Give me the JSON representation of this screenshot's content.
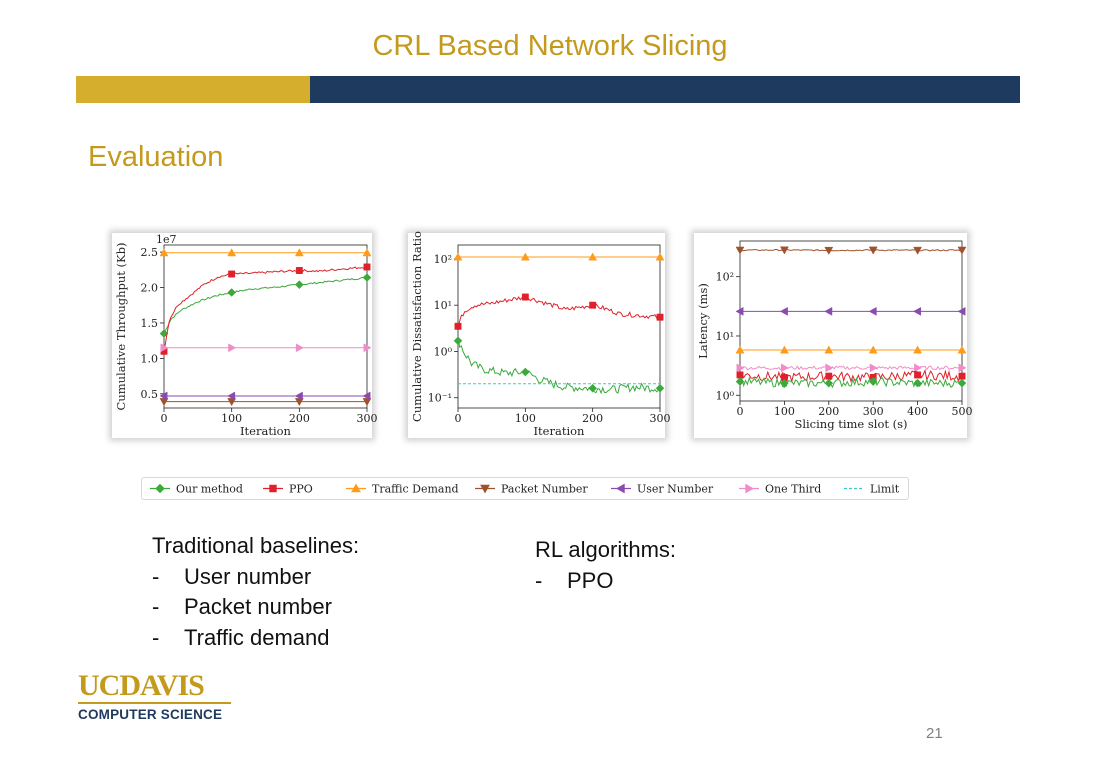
{
  "slide": {
    "title": "CRL Based Network Slicing",
    "section": "Evaluation",
    "page_number": "21",
    "colors": {
      "gold": "#d4ae2c",
      "navy": "#1e3a5f",
      "title_gold": "#c49a1c"
    }
  },
  "logo": {
    "line1": "UCDAVIS",
    "line2": "COMPUTER SCIENCE"
  },
  "traditional": {
    "heading": "Traditional baselines:",
    "items": [
      "User number",
      "Packet number",
      "Traffic demand"
    ]
  },
  "rl": {
    "heading": "RL algorithms:",
    "items": [
      "PPO"
    ]
  },
  "series_styles": [
    {
      "name": "Our method",
      "color": "#3aaa3a",
      "marker": "diamond"
    },
    {
      "name": "PPO",
      "color": "#e0202a",
      "marker": "square"
    },
    {
      "name": "Traffic Demand",
      "color": "#ff9a1a",
      "marker": "triangle-up"
    },
    {
      "name": "Packet Number",
      "color": "#a0522d",
      "marker": "triangle-down"
    },
    {
      "name": "User Number",
      "color": "#8a4bb0",
      "marker": "triangle-left"
    },
    {
      "name": "One Third",
      "color": "#f08cc8",
      "marker": "triangle-right"
    },
    {
      "name": "Limit",
      "color": "#3cc9c9",
      "marker": "dashed"
    }
  ],
  "chart_data": [
    {
      "type": "line",
      "xlabel": "Iteration",
      "ylabel": "Cumulative Throughput (Kb)",
      "offset_text": "1e7",
      "xlim": [
        0,
        300
      ],
      "ylim": [
        0.3,
        2.6
      ],
      "xticks": [
        0,
        100,
        200,
        300
      ],
      "yticks": [
        0.5,
        1.0,
        1.5,
        2.0,
        2.5
      ],
      "ytick_labels": [
        "0.5",
        "1.0",
        "1.5",
        "2.0",
        "2.5"
      ],
      "series": [
        {
          "name": "Our method",
          "x": [
            0,
            10,
            25,
            50,
            75,
            100,
            130,
            160,
            200,
            230,
            260,
            300
          ],
          "y": [
            1.35,
            1.55,
            1.68,
            1.8,
            1.88,
            1.93,
            1.98,
            2.0,
            2.04,
            2.07,
            2.1,
            2.14
          ]
        },
        {
          "name": "PPO",
          "x": [
            0,
            8,
            20,
            40,
            60,
            80,
            100,
            130,
            160,
            200,
            230,
            260,
            300
          ],
          "y": [
            1.1,
            1.55,
            1.75,
            1.9,
            2.05,
            2.15,
            2.19,
            2.2,
            2.22,
            2.24,
            2.23,
            2.26,
            2.29
          ]
        },
        {
          "name": "Traffic Demand",
          "x": [
            0,
            300
          ],
          "y": [
            2.49,
            2.49
          ]
        },
        {
          "name": "Packet Number",
          "x": [
            0,
            300
          ],
          "y": [
            0.39,
            0.39
          ]
        },
        {
          "name": "User Number",
          "x": [
            0,
            300
          ],
          "y": [
            0.47,
            0.47
          ]
        },
        {
          "name": "One Third",
          "x": [
            0,
            300
          ],
          "y": [
            1.15,
            1.15
          ]
        }
      ]
    },
    {
      "type": "line",
      "xlabel": "Iteration",
      "ylabel": "Cumulative Dissatisfaction Ratio",
      "yscale": "log",
      "xlim": [
        0,
        300
      ],
      "ylim": [
        0.06,
        200
      ],
      "xticks": [
        0,
        100,
        200,
        300
      ],
      "yticks": [
        0.1,
        1,
        10,
        100
      ],
      "ytick_labels": [
        "10⁻¹",
        "10⁰",
        "10¹",
        "10²"
      ],
      "series": [
        {
          "name": "Our method",
          "x": [
            0,
            10,
            20,
            35,
            50,
            70,
            100,
            120,
            140,
            160,
            200,
            230,
            260,
            300
          ],
          "y": [
            1.7,
            0.9,
            0.55,
            0.42,
            0.38,
            0.34,
            0.36,
            0.25,
            0.2,
            0.17,
            0.16,
            0.15,
            0.17,
            0.16
          ]
        },
        {
          "name": "PPO",
          "x": [
            0,
            10,
            25,
            50,
            75,
            100,
            130,
            160,
            200,
            240,
            270,
            300
          ],
          "y": [
            3.5,
            7.5,
            10,
            11,
            13,
            15,
            11,
            8,
            10,
            6.5,
            6,
            5.5
          ]
        },
        {
          "name": "Traffic Demand",
          "x": [
            0,
            300
          ],
          "y": [
            110,
            110
          ]
        },
        {
          "name": "Limit",
          "x": [
            0,
            300
          ],
          "y": [
            0.2,
            0.2
          ]
        }
      ]
    },
    {
      "type": "line",
      "xlabel": "Slicing time slot (s)",
      "ylabel": "Latency (ms)",
      "yscale": "log",
      "xlim": [
        0,
        500
      ],
      "ylim": [
        0.8,
        400
      ],
      "xticks": [
        0,
        100,
        200,
        300,
        400,
        500
      ],
      "yticks": [
        1,
        10,
        100
      ],
      "ytick_labels": [
        "10⁰",
        "10¹",
        "10²"
      ],
      "series": [
        {
          "name": "Packet Number",
          "x": [
            0,
            100,
            200,
            300,
            400,
            500
          ],
          "y": [
            280,
            282,
            278,
            281,
            279,
            280
          ]
        },
        {
          "name": "User Number",
          "x": [
            0,
            100,
            200,
            300,
            400,
            500
          ],
          "y": [
            26,
            26,
            26,
            26,
            26,
            26
          ]
        },
        {
          "name": "Traffic Demand",
          "x": [
            0,
            100,
            200,
            300,
            400,
            500
          ],
          "y": [
            5.8,
            5.8,
            5.8,
            5.8,
            5.8,
            5.8
          ]
        },
        {
          "name": "One Third",
          "x": [
            0,
            100,
            200,
            300,
            400,
            500
          ],
          "y": [
            2.9,
            2.9,
            2.9,
            2.9,
            2.9,
            2.9
          ]
        },
        {
          "name": "PPO",
          "x": [
            0,
            100,
            200,
            300,
            400,
            500
          ],
          "y": [
            2.2,
            2.0,
            2.1,
            2.0,
            2.2,
            2.1
          ]
        },
        {
          "name": "Our method",
          "x": [
            0,
            100,
            200,
            300,
            400,
            500
          ],
          "y": [
            1.7,
            1.6,
            1.6,
            1.7,
            1.6,
            1.6
          ]
        }
      ]
    }
  ]
}
